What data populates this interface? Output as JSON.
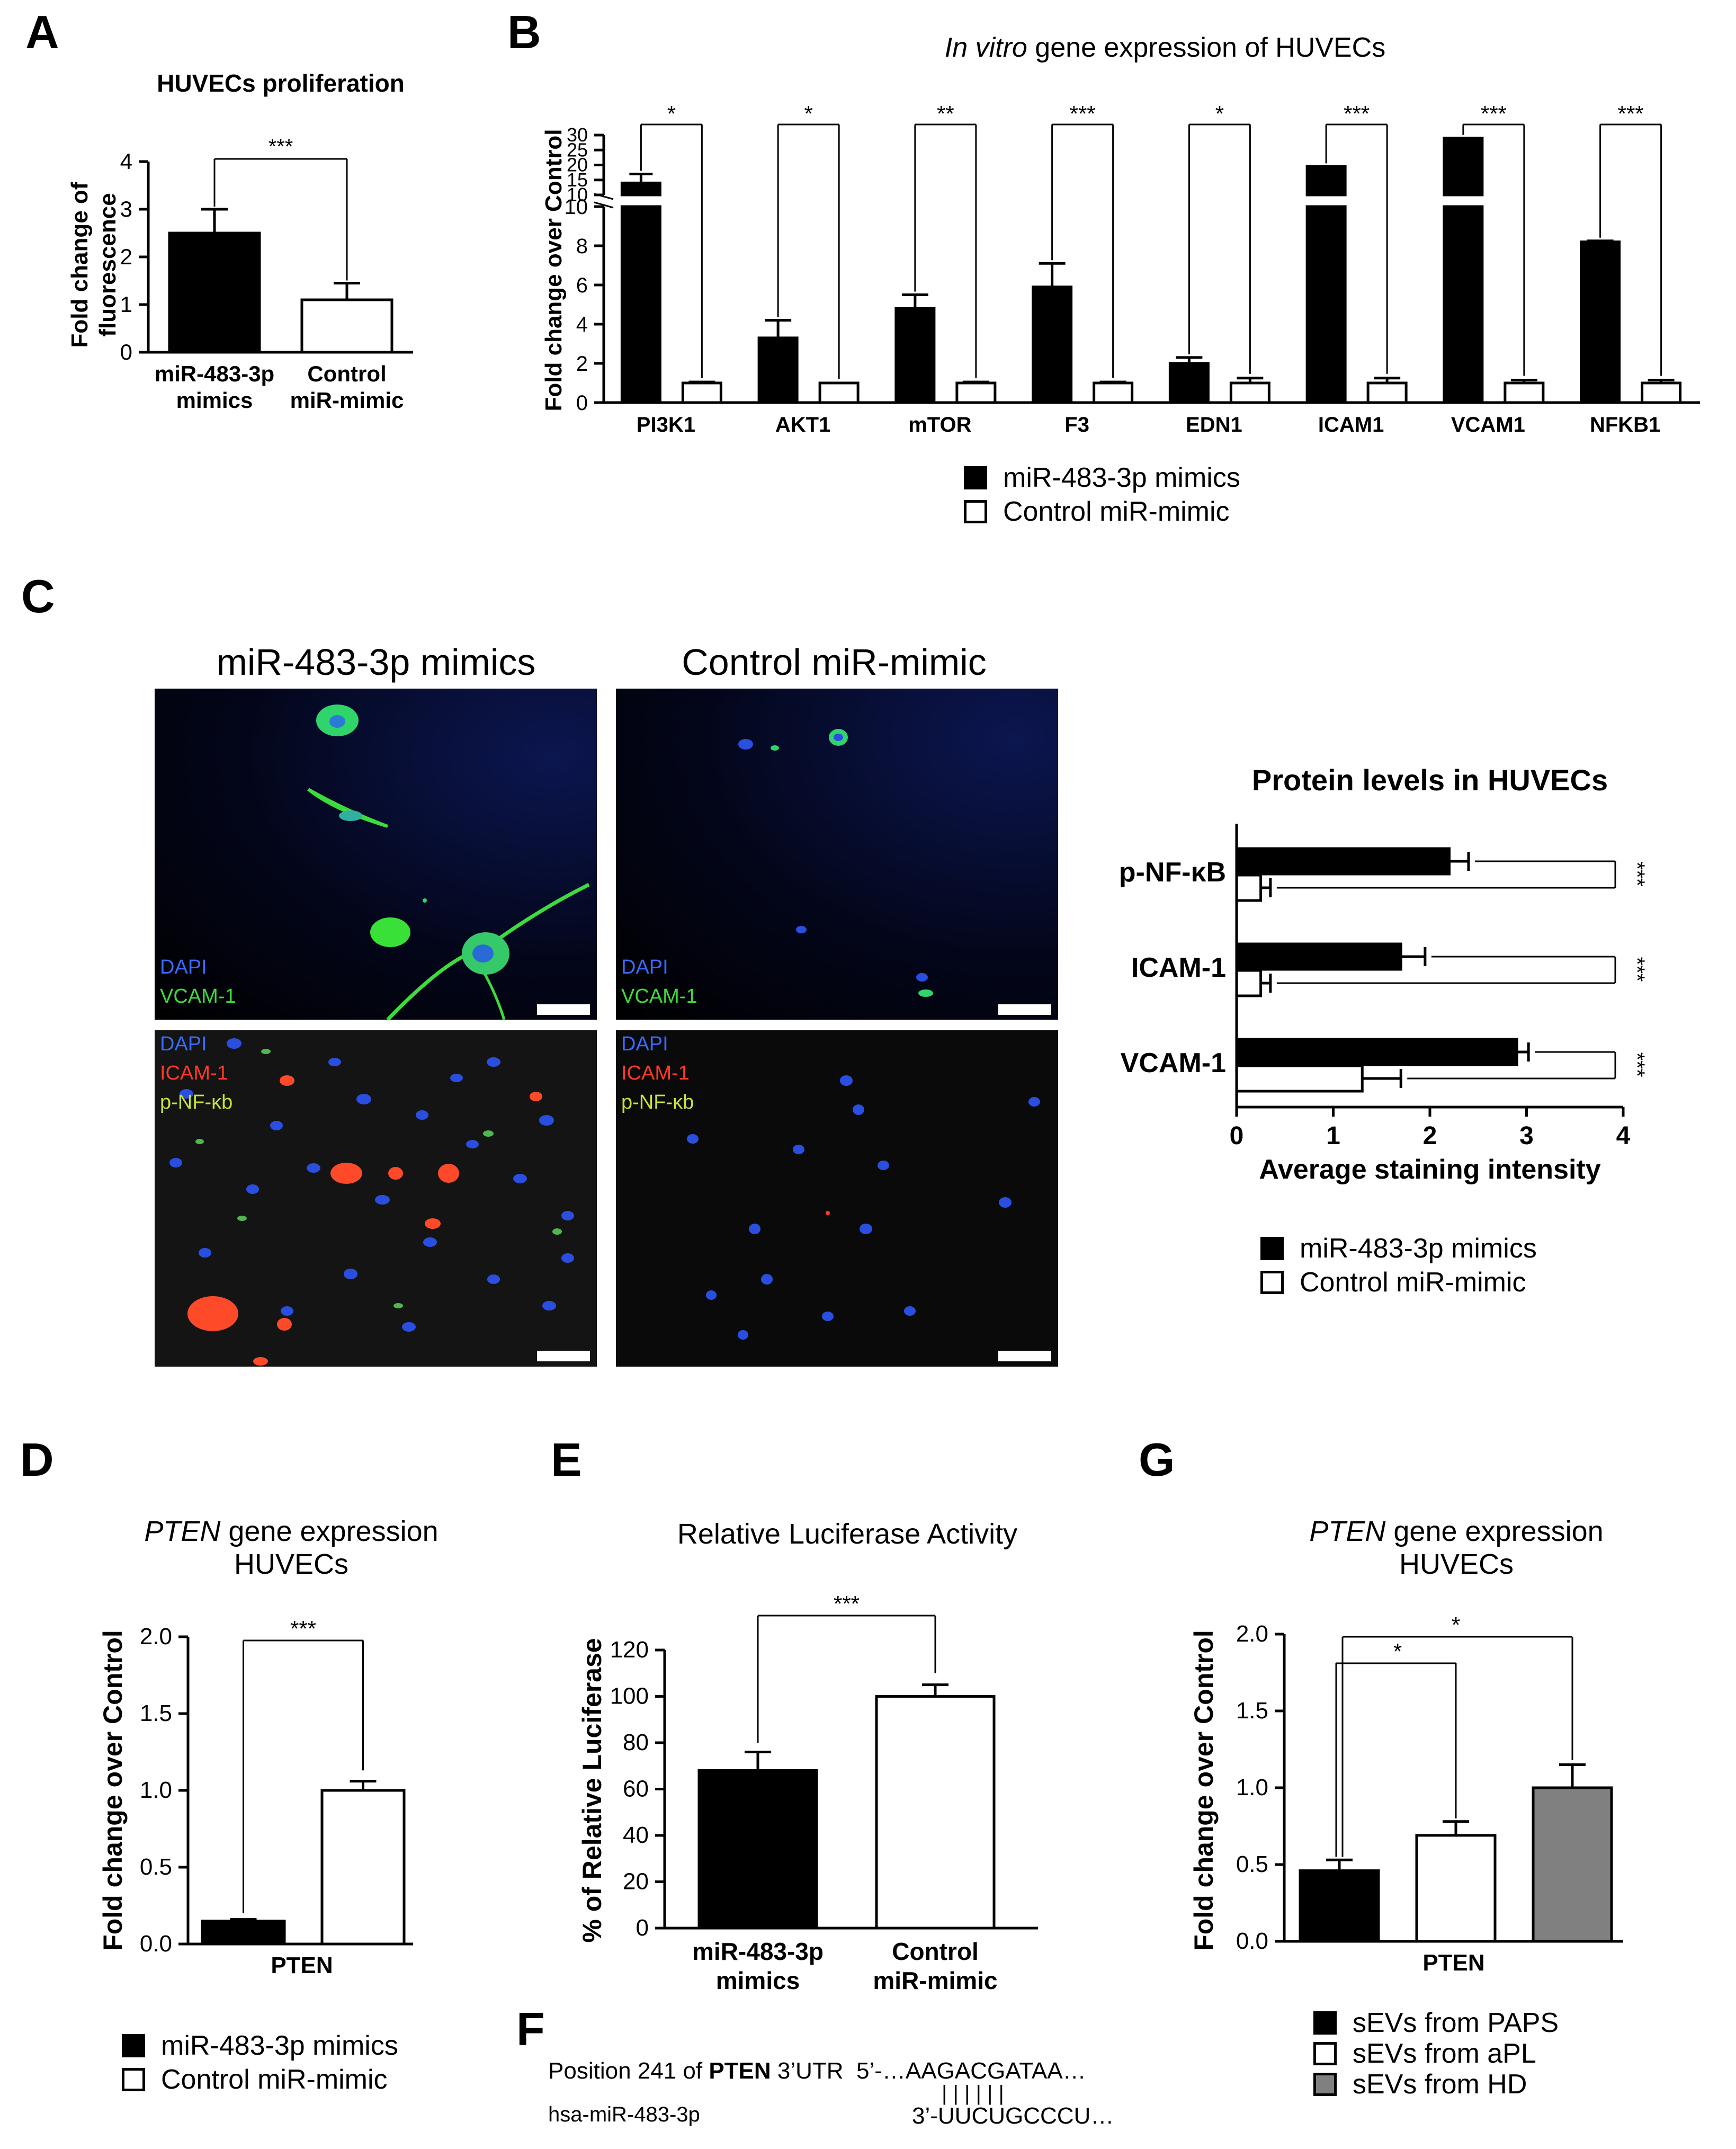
{
  "panels": {
    "A": "A",
    "B": "B",
    "C": "C",
    "D": "D",
    "E": "E",
    "F": "F",
    "G": "G"
  },
  "legend_mimic": {
    "mimics": "miR-483-3p  mimics",
    "control": "Control miR-mimic"
  },
  "legend_sevs": {
    "paps": "sEVs from PAPS",
    "apl": "sEVs from aPL",
    "hd": "sEVs from HD"
  },
  "colors": {
    "black": "#000000",
    "white": "#ffffff",
    "gray": "#808080",
    "dapi": "#3a6bff",
    "vcam": "#3ddc3d",
    "icam": "#ff3a2a"
  },
  "microscopy": {
    "col1_title": "miR-483-3p mimics",
    "col2_title": "Control miR-mimic",
    "labels_top": [
      "DAPI",
      "VCAM-1"
    ],
    "labels_bottom": [
      "DAPI",
      "ICAM-1",
      "p-NF-κb"
    ]
  },
  "sequence": {
    "line1_prefix": "Position 241 of ",
    "line1_gene": "PTEN",
    "line1_suffix": " 3’UTR  5’-…AAGACGATAA…",
    "pairs": "| | | | | |",
    "line2_name": "hsa-miR-483-3p",
    "line2_seq": "3’-UUCUGCCCU…"
  },
  "chart_data": [
    {
      "id": "A",
      "type": "bar",
      "title": "HUVECs proliferation",
      "ylabel": [
        "Fold change of",
        "fluorescence"
      ],
      "categories": [
        [
          "miR-483-3p",
          "mimics"
        ],
        [
          "Control",
          "miR-mimic"
        ]
      ],
      "values": [
        2.5,
        1.1
      ],
      "errors": [
        0.5,
        0.35
      ],
      "ylim": [
        0,
        4
      ],
      "yticks": [
        "0",
        "1",
        "2",
        "3",
        "4"
      ],
      "significance": [
        {
          "pair": [
            0,
            1
          ],
          "label": "***"
        }
      ]
    },
    {
      "id": "B",
      "type": "bar",
      "title_italic": "In vitro",
      "title_rest": " gene expression of HUVECs",
      "ylabel": "Fold change over Control",
      "categories": [
        "PI3K1",
        "AKT1",
        "mTOR",
        "F3",
        "EDN1",
        "ICAM1",
        "VCAM1",
        "NFKB1"
      ],
      "series": [
        {
          "name": "miR-483-3p  mimics",
          "values": [
            14,
            3.3,
            4.8,
            5.9,
            2.0,
            19.5,
            29,
            8.2
          ],
          "errors": [
            3,
            0.9,
            0.7,
            1.2,
            0.3,
            0,
            0,
            0.05
          ]
        },
        {
          "name": "Control miR-mimic",
          "values": [
            1,
            1,
            1,
            1,
            1,
            1,
            1,
            1
          ],
          "errors": [
            0.05,
            0,
            0.05,
            0.05,
            0.25,
            0.25,
            0.15,
            0.15
          ]
        }
      ],
      "ylim_lower": [
        0,
        10
      ],
      "ylim_upper": [
        10,
        30
      ],
      "yticks_lower": [
        "0",
        "2",
        "4",
        "6",
        "8",
        "10"
      ],
      "yticks_upper": [
        "10",
        "15",
        "20",
        "25",
        "30"
      ],
      "axis_break": true,
      "significance": [
        "*",
        "*",
        "**",
        "***",
        "*",
        "***",
        "***",
        "***"
      ]
    },
    {
      "id": "C",
      "type": "bar",
      "orientation": "horizontal",
      "title": "Protein levels in HUVECs",
      "xlabel": "Average staining intensity",
      "categories": [
        "p-NF-κB",
        "ICAM-1",
        "VCAM-1"
      ],
      "series": [
        {
          "name": "miR-483-3p  mimics",
          "values": [
            2.2,
            1.7,
            2.9
          ],
          "errors": [
            0.2,
            0.25,
            0.12
          ]
        },
        {
          "name": "Control miR-mimic",
          "values": [
            0.25,
            0.25,
            1.3
          ],
          "errors": [
            0.1,
            0.1,
            0.4
          ]
        }
      ],
      "xlim": [
        0,
        4
      ],
      "xticks": [
        "0",
        "1",
        "2",
        "3",
        "4"
      ],
      "significance": [
        "***",
        "***",
        "***"
      ]
    },
    {
      "id": "D",
      "type": "bar",
      "title_italic": "PTEN",
      "title_rest": " gene expression",
      "title_line2": "HUVECs",
      "ylabel": "Fold change over Control",
      "xlabel": "PTEN",
      "series": [
        {
          "name": "miR-483-3p  mimics",
          "values": [
            0.15
          ],
          "errors": [
            0.01
          ]
        },
        {
          "name": "Control miR-mimic",
          "values": [
            1.0
          ],
          "errors": [
            0.06
          ]
        }
      ],
      "ylim": [
        0,
        2
      ],
      "yticks": [
        "0.0",
        "0.5",
        "1.0",
        "1.5",
        "2.0"
      ],
      "significance": [
        {
          "pair": [
            0,
            1
          ],
          "label": "***"
        }
      ]
    },
    {
      "id": "E",
      "type": "bar",
      "title": "Relative Luciferase Activity",
      "ylabel": "% of Relative Luciferase",
      "categories": [
        [
          "miR-483-3p",
          "mimics"
        ],
        [
          "Control",
          "miR-mimic"
        ]
      ],
      "values": [
        68,
        100
      ],
      "errors": [
        8,
        5
      ],
      "ylim": [
        0,
        120
      ],
      "yticks": [
        "0",
        "20",
        "40",
        "60",
        "80",
        "100",
        "120"
      ],
      "significance": [
        {
          "pair": [
            0,
            1
          ],
          "label": "***"
        }
      ]
    },
    {
      "id": "G",
      "type": "bar",
      "title_italic": "PTEN",
      "title_rest": " gene expression",
      "title_line2": "HUVECs",
      "ylabel": "Fold change over Control",
      "xlabel": "PTEN",
      "series": [
        {
          "name": "sEVs from PAPS",
          "values": [
            0.46
          ],
          "errors": [
            0.07
          ]
        },
        {
          "name": "sEVs from aPL",
          "values": [
            0.69
          ],
          "errors": [
            0.09
          ]
        },
        {
          "name": "sEVs from HD",
          "values": [
            1.0
          ],
          "errors": [
            0.15
          ]
        }
      ],
      "ylim": [
        0,
        2
      ],
      "yticks": [
        "0.0",
        "0.5",
        "1.0",
        "1.5",
        "2.0"
      ],
      "significance": [
        {
          "pair": [
            0,
            1
          ],
          "label": "*"
        },
        {
          "pair": [
            0,
            2
          ],
          "label": "*"
        }
      ]
    }
  ]
}
